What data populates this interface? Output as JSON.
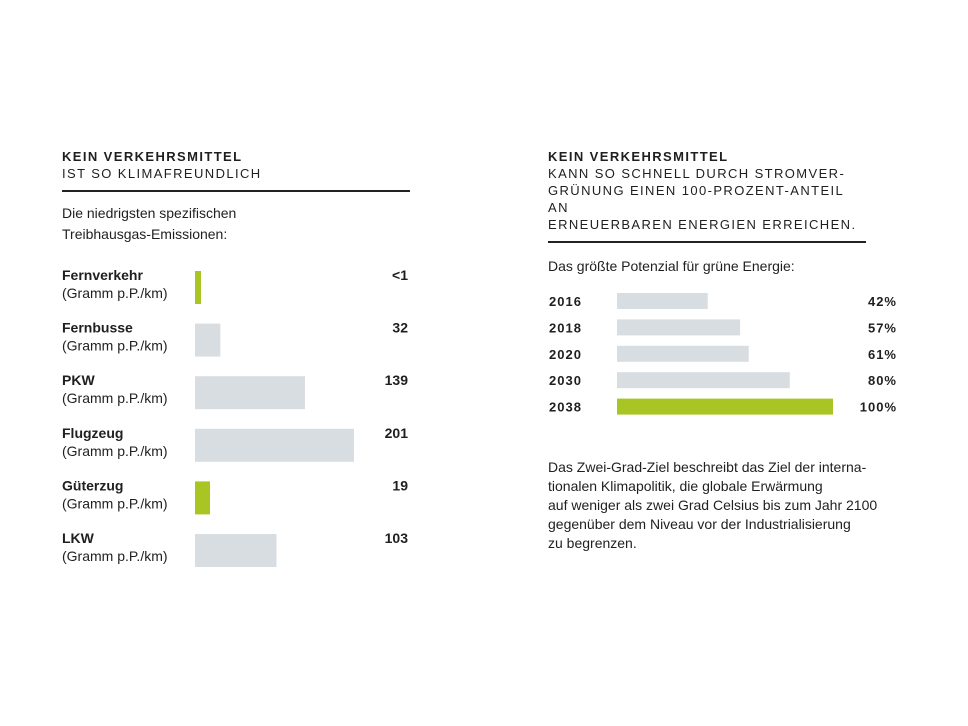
{
  "left": {
    "heading_bold": "KEIN VERKEHRSMITTEL",
    "heading_rest": "IST SO KLIMAFREUNDLICH",
    "subtitle": "Die niedrigsten spezifischen\nTreibhausgas-Emissionen:"
  },
  "right": {
    "heading_bold": "KEIN VERKEHRSMITTEL",
    "heading_rest": "KANN SO SCHNELL DURCH STROMVER-\nGRÜNUNG EINEN 100-PROZENT-ANTEIL AN\nERNEUERBAREN ENERGIEN ERREICHEN.",
    "subtitle": "Das größte Potenzial für grüne Energie:",
    "note": "Das Zwei-Grad-Ziel beschreibt das Ziel der interna-\ntionalen Klimapolitik, die globale Erwärmung\nauf weniger als zwei Grad Celsius bis zum Jahr 2100\ngegenüber dem Niveau vor der Industrialisierung\nzu begrenzen."
  },
  "colors": {
    "gray": "#d8dde2",
    "green": "#a8c523",
    "text": "#1f1f1f"
  },
  "chart_data": [
    {
      "type": "bar",
      "orientation": "horizontal",
      "title": "Die niedrigsten spezifischen Treibhausgas-Emissionen:",
      "categories": [
        "Fernverkehr",
        "Fernbusse",
        "PKW",
        "Flugzeug",
        "Güterzug",
        "LKW"
      ],
      "unit_label": "(Gramm p.P./km)",
      "values": [
        0.5,
        32,
        139,
        201,
        19,
        103
      ],
      "value_labels": [
        "<1",
        "32",
        "139",
        "201",
        "19",
        "103"
      ],
      "highlight": [
        true,
        false,
        false,
        false,
        true,
        false
      ],
      "xlim": [
        0,
        201
      ],
      "grid": false
    },
    {
      "type": "bar",
      "orientation": "horizontal",
      "title": "Das größte Potenzial für grüne Energie:",
      "categories": [
        "2016",
        "2018",
        "2020",
        "2030",
        "2038"
      ],
      "values": [
        42,
        57,
        61,
        80,
        100
      ],
      "value_labels": [
        "42%",
        "57%",
        "61%",
        "80%",
        "100%"
      ],
      "highlight": [
        false,
        false,
        false,
        false,
        true
      ],
      "xlim": [
        0,
        100
      ],
      "grid": false
    }
  ]
}
